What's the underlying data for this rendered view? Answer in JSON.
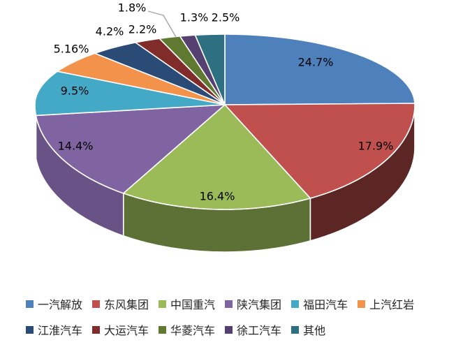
{
  "chart_data": {
    "type": "pie",
    "style": "3d",
    "title": "",
    "categories": [
      "一汽解放",
      "东风集团",
      "中国重汽",
      "陕汽集团",
      "福田汽车",
      "上汽红岩",
      "江淮汽车",
      "大运汽车",
      "华菱汽车",
      "徐工汽车",
      "其他"
    ],
    "values": [
      24.7,
      17.9,
      16.4,
      14.4,
      9.5,
      5.16,
      4.2,
      2.2,
      1.8,
      1.3,
      2.5
    ],
    "value_labels": [
      "24.7%",
      "17.9%",
      "16.4%",
      "14.4%",
      "9.5%",
      "5.16%",
      "4.2%",
      "2.2%",
      "1.8%",
      "1.3%",
      "2.5%"
    ],
    "colors": [
      "#4E80BC",
      "#C0504D",
      "#9BBB59",
      "#8064A2",
      "#44A9C6",
      "#F3934B",
      "#2A4B76",
      "#802C2A",
      "#5F7930",
      "#554171",
      "#2E6F81"
    ],
    "start_angle": 90,
    "direction": "clockwise",
    "legend_position": "bottom",
    "background": "#FFFFFF",
    "label_color": "#000000",
    "leader_color": "#A6A6A6",
    "legend_text_color": "#262626"
  }
}
